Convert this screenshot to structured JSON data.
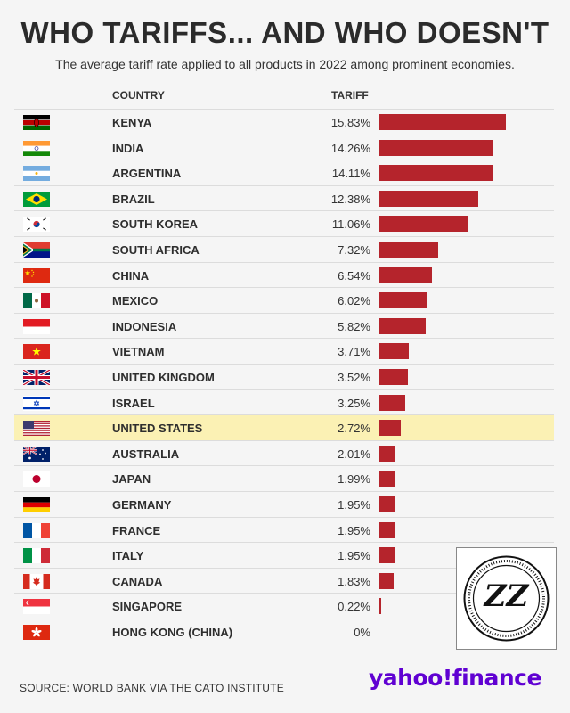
{
  "title": "WHO TARIFFS... AND WHO DOESN'T",
  "subtitle": "The average tariff rate applied to all products in 2022 among prominent economies.",
  "headers": {
    "country": "COUNTRY",
    "tariff": "TARIFF"
  },
  "source": "SOURCE: WORLD BANK VIA THE CATO INSTITUTE",
  "logo": {
    "text_a": "yahoo",
    "text_b": "!",
    "text_c": "finance"
  },
  "seal": {
    "monogram": "ZZ"
  },
  "colors": {
    "bar": "#b5242c",
    "highlight": "#fbf1b4",
    "logo": "#6001d2"
  },
  "chart_data": {
    "type": "bar",
    "orientation": "horizontal",
    "xlim": [
      0,
      16
    ],
    "highlight": "UNITED STATES",
    "categories": [
      "KENYA",
      "INDIA",
      "ARGENTINA",
      "BRAZIL",
      "SOUTH KOREA",
      "SOUTH AFRICA",
      "CHINA",
      "MEXICO",
      "INDONESIA",
      "VIETNAM",
      "UNITED KINGDOM",
      "ISRAEL",
      "UNITED STATES",
      "AUSTRALIA",
      "JAPAN",
      "GERMANY",
      "FRANCE",
      "ITALY",
      "CANADA",
      "SINGAPORE",
      "HONG KONG (CHINA)"
    ],
    "labels": [
      "15.83%",
      "14.26%",
      "14.11%",
      "12.38%",
      "11.06%",
      "7.32%",
      "6.54%",
      "6.02%",
      "5.82%",
      "3.71%",
      "3.52%",
      "3.25%",
      "2.72%",
      "2.01%",
      "1.99%",
      "1.95%",
      "1.95%",
      "1.95%",
      "1.83%",
      "0.22%",
      "0%"
    ],
    "values": [
      15.83,
      14.26,
      14.11,
      12.38,
      11.06,
      7.32,
      6.54,
      6.02,
      5.82,
      3.71,
      3.52,
      3.25,
      2.72,
      2.01,
      1.99,
      1.95,
      1.95,
      1.95,
      1.83,
      0.22,
      0
    ],
    "flags": [
      "kenya-flag-icon",
      "india-flag-icon",
      "argentina-flag-icon",
      "brazil-flag-icon",
      "south-korea-flag-icon",
      "south-africa-flag-icon",
      "china-flag-icon",
      "mexico-flag-icon",
      "indonesia-flag-icon",
      "vietnam-flag-icon",
      "united-kingdom-flag-icon",
      "israel-flag-icon",
      "united-states-flag-icon",
      "australia-flag-icon",
      "japan-flag-icon",
      "germany-flag-icon",
      "france-flag-icon",
      "italy-flag-icon",
      "canada-flag-icon",
      "singapore-flag-icon",
      "hong-kong-flag-icon"
    ]
  }
}
